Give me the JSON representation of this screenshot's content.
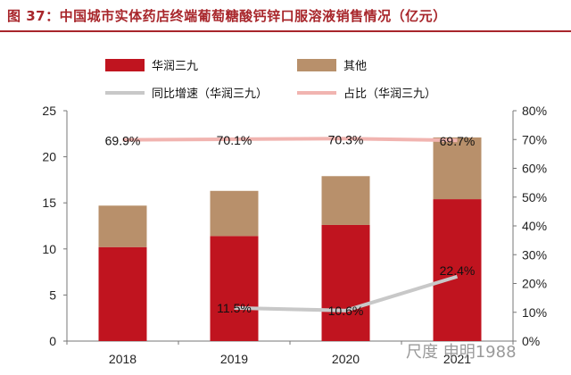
{
  "title": "图 37：中国城市实体药店终端葡萄糖酸钙锌口服溶液销售情况（亿元）",
  "watermark": "尺度 申明1988",
  "colors": {
    "title": "#a8262b",
    "series_main": "#c0141f",
    "series_other": "#b8906b",
    "line_growth": "#c8c8c8",
    "line_share": "#f1b4b0"
  },
  "chart_data": {
    "type": "bar",
    "stacked": true,
    "categories": [
      "2018",
      "2019",
      "2020",
      "2021"
    ],
    "series": [
      {
        "name": "华润三九",
        "type": "bar",
        "axis": "left",
        "values": [
          10.2,
          11.4,
          12.6,
          15.4
        ]
      },
      {
        "name": "其他",
        "type": "bar",
        "axis": "left",
        "values": [
          4.5,
          4.9,
          5.3,
          6.7
        ]
      },
      {
        "name": "同比增速（华润三九）",
        "type": "line",
        "axis": "right",
        "values": [
          null,
          11.5,
          10.6,
          22.4
        ],
        "labels": [
          "",
          "11.5%",
          "10.6%",
          "22.4%"
        ]
      },
      {
        "name": "占比（华润三九）",
        "type": "line",
        "axis": "right",
        "values": [
          69.9,
          70.1,
          70.3,
          69.7
        ],
        "labels": [
          "69.9%",
          "70.1%",
          "70.3%",
          "69.7%"
        ]
      }
    ],
    "ylim_left": [
      0,
      25
    ],
    "yticks_left": [
      "0",
      "5",
      "10",
      "15",
      "20",
      "25"
    ],
    "ylim_right": [
      0,
      80
    ],
    "yticks_right": [
      "0%",
      "10%",
      "20%",
      "30%",
      "40%",
      "50%",
      "60%",
      "70%",
      "80%"
    ],
    "grid": false,
    "legend_position": "top"
  }
}
